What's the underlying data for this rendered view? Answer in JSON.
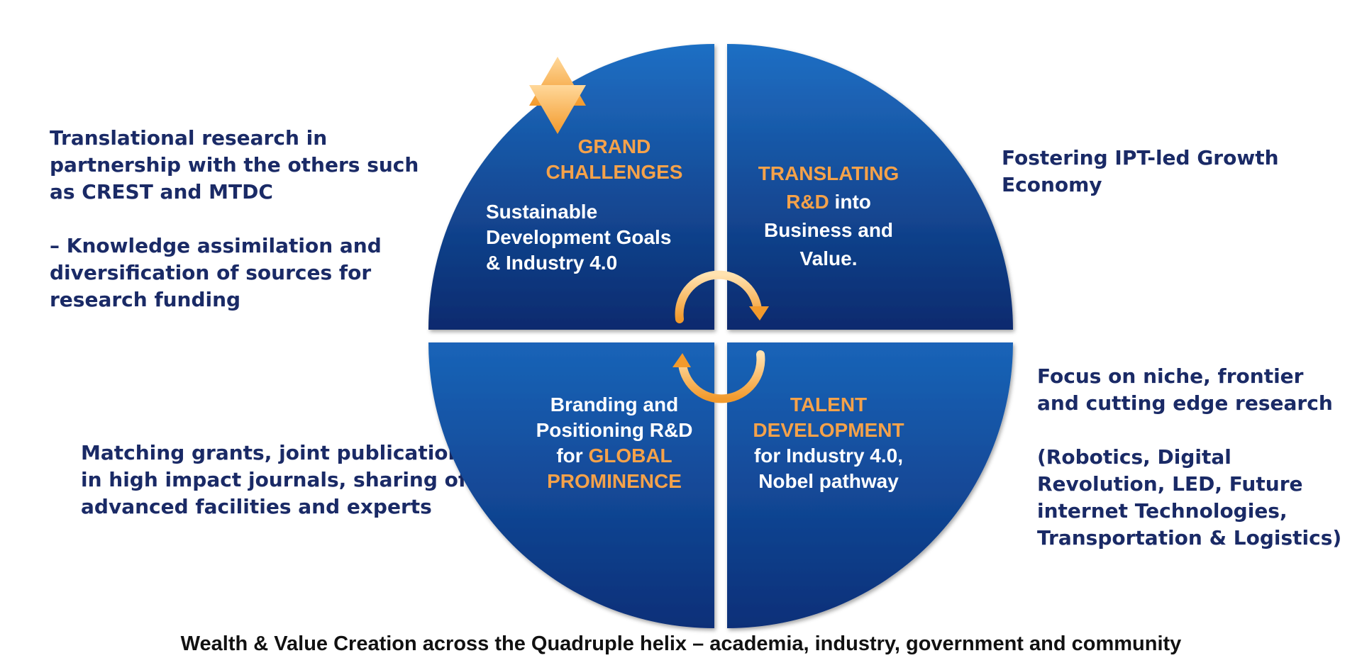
{
  "left_top": {
    "line1": "Translational research in partnership with the others such as CREST and MTDC",
    "line2": "– Knowledge assimilation and diversification of sources for research funding"
  },
  "left_bottom": {
    "text": "Matching grants, joint publications in high impact journals, sharing of advanced facilities and experts"
  },
  "right_top": {
    "text": "Fostering IPT-led Growth Economy"
  },
  "right_bottom": {
    "line1": "Focus on niche, frontier and cutting edge research",
    "line2": "(Robotics, Digital Revolution, LED, Future internet Technologies, Transportation & Logistics)"
  },
  "quadrants": {
    "top_left": {
      "title_1": "GRAND",
      "title_2": "CHALLENGES",
      "body_1": "Sustainable",
      "body_2": "Development Goals",
      "body_3": "& Industry 4.0"
    },
    "top_right": {
      "title_1": "TRANSLATING",
      "title_2_orange": "R&D",
      "title_2_white": " into",
      "body_1": "Business and",
      "body_2": "Value."
    },
    "bottom_left": {
      "body_1": "Branding and",
      "body_2": "Positioning R&D",
      "body_3_white": "for ",
      "body_3_orange": "GLOBAL",
      "body_4_orange": "PROMINENCE"
    },
    "bottom_right": {
      "title_1": "TALENT",
      "title_2": "DEVELOPMENT",
      "body_1": "for Industry 4.0,",
      "body_2": "Nobel pathway"
    }
  },
  "footer": "Wealth & Value Creation across the Quadruple helix – academia, industry, government and community",
  "colors": {
    "quadrant_light": "#1f6fc4",
    "quadrant_dark": "#0a2a6e",
    "accent_orange": "#f5a24a",
    "side_text": "#1a2a66"
  }
}
